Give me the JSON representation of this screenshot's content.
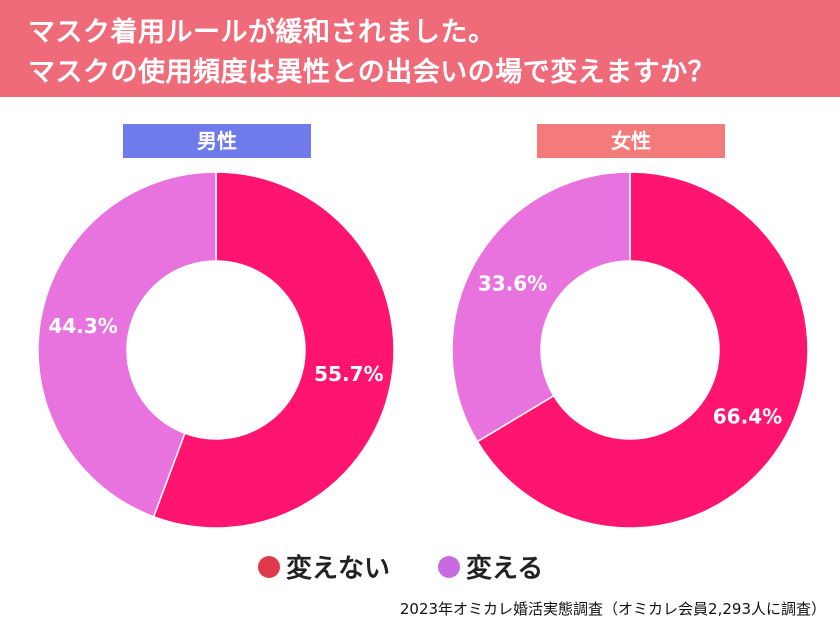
{
  "header": {
    "title_line1": "マスク着用ルールが緩和されました。",
    "title_line2": "マスクの使用頻度は異性との出会いの場で変えますか？",
    "background_color": "#EF6B7A"
  },
  "chart_data": [
    {
      "type": "pie",
      "subtype": "donut",
      "title": "男性",
      "title_color": "#6F7BEA",
      "categories": [
        "変えない",
        "変える"
      ],
      "values": [
        55.7,
        44.3
      ],
      "labels": [
        "55.7%",
        "44.3%"
      ],
      "colors": [
        "#FF1470",
        "#E873DE"
      ]
    },
    {
      "type": "pie",
      "subtype": "donut",
      "title": "女性",
      "title_color": "#F47B7B",
      "categories": [
        "変えない",
        "変える"
      ],
      "values": [
        66.4,
        33.6
      ],
      "labels": [
        "66.4%",
        "33.6%"
      ],
      "colors": [
        "#FF1470",
        "#E873DE"
      ]
    }
  ],
  "legend": {
    "placement": "bottom",
    "items": [
      {
        "label": "変えない",
        "color": "#E0394C"
      },
      {
        "label": "変える",
        "color": "#C86BE0"
      }
    ]
  },
  "source": "2023年オミカレ婚活実態調査（オミカレ会員2,293人に調査）"
}
